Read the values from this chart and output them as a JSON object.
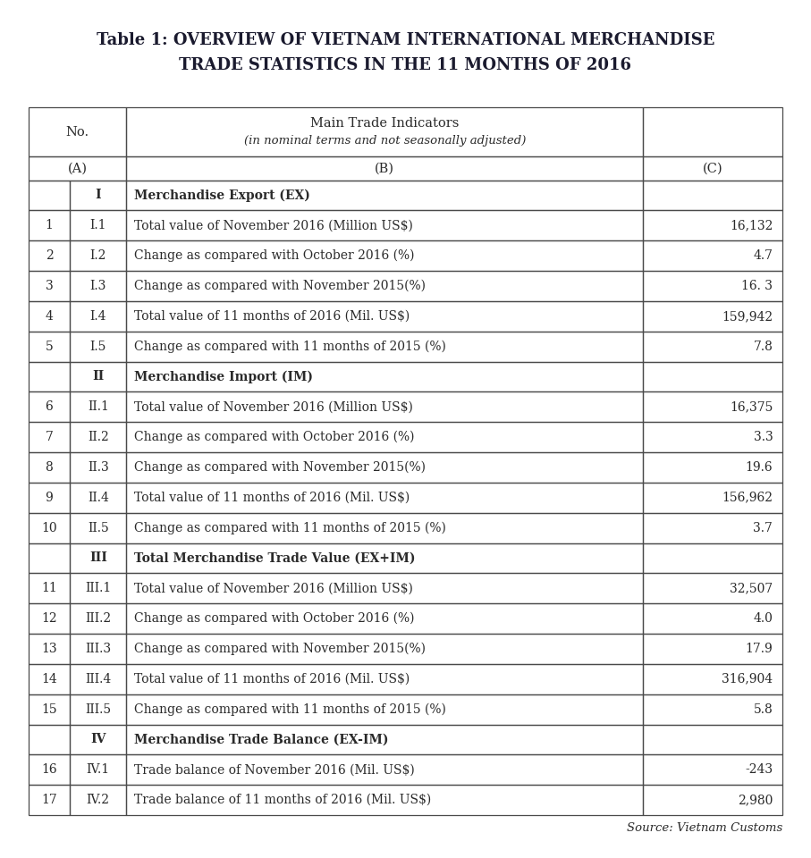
{
  "title_line1": "Table 1: OVERVIEW OF VIETNAM INTERNATIONAL MERCHANDISE",
  "title_line2": "TRADE STATISTICS IN THE 11 MONTHS OF 2016",
  "header_col1": "No.",
  "header_col2_line1": "Main Trade Indicators",
  "header_col2_line2": "(in nominal terms and not seasonally adjusted)",
  "header_col3": "(C)",
  "subheader_A": "(A)",
  "subheader_B": "(B)",
  "source": "Source: Vietnam Customs",
  "rows": [
    {
      "type": "section",
      "num": "",
      "sub": "I",
      "desc": "Merchandise Export (EX)",
      "val": ""
    },
    {
      "type": "data",
      "num": "1",
      "sub": "I.1",
      "desc": "Total value of November 2016 (Million US$)",
      "val": "16,132"
    },
    {
      "type": "data",
      "num": "2",
      "sub": "I.2",
      "desc": "Change as compared with October 2016 (%)",
      "val": "4.7"
    },
    {
      "type": "data",
      "num": "3",
      "sub": "I.3",
      "desc": "Change as compared with November 2015(%)",
      "val": "16. 3"
    },
    {
      "type": "data",
      "num": "4",
      "sub": "I.4",
      "desc": "Total value of 11 months of 2016 (Mil. US$)",
      "val": "159,942"
    },
    {
      "type": "data",
      "num": "5",
      "sub": "I.5",
      "desc": "Change as compared with 11 months of 2015 (%)",
      "val": "7.8"
    },
    {
      "type": "section",
      "num": "",
      "sub": "II",
      "desc": "Merchandise Import (IM)",
      "val": ""
    },
    {
      "type": "data",
      "num": "6",
      "sub": "II.1",
      "desc": "Total value of November 2016 (Million US$)",
      "val": "16,375"
    },
    {
      "type": "data",
      "num": "7",
      "sub": "II.2",
      "desc": "Change as compared with October 2016 (%)",
      "val": "3.3"
    },
    {
      "type": "data",
      "num": "8",
      "sub": "II.3",
      "desc": "Change as compared with November 2015(%)",
      "val": "19.6"
    },
    {
      "type": "data",
      "num": "9",
      "sub": "II.4",
      "desc": "Total value of 11 months of 2016 (Mil. US$)",
      "val": "156,962"
    },
    {
      "type": "data",
      "num": "10",
      "sub": "II.5",
      "desc": "Change as compared with 11 months of 2015 (%)",
      "val": "3.7"
    },
    {
      "type": "section",
      "num": "",
      "sub": "III",
      "desc": "Total Merchandise Trade Value (EX+IM)",
      "val": ""
    },
    {
      "type": "data",
      "num": "11",
      "sub": "III.1",
      "desc": "Total value of November 2016 (Million US$)",
      "val": "32,507"
    },
    {
      "type": "data",
      "num": "12",
      "sub": "III.2",
      "desc": "Change as compared with October 2016 (%)",
      "val": "4.0"
    },
    {
      "type": "data",
      "num": "13",
      "sub": "III.3",
      "desc": "Change as compared with November 2015(%)",
      "val": "17.9"
    },
    {
      "type": "data",
      "num": "14",
      "sub": "III.4",
      "desc": "Total value of 11 months of 2016 (Mil. US$)",
      "val": "316,904"
    },
    {
      "type": "data",
      "num": "15",
      "sub": "III.5",
      "desc": "Change as compared with 11 months of 2015 (%)",
      "val": "5.8"
    },
    {
      "type": "section",
      "num": "",
      "sub": "IV",
      "desc": "Merchandise Trade Balance (EX-IM)",
      "val": ""
    },
    {
      "type": "data",
      "num": "16",
      "sub": "IV.1",
      "desc": "Trade balance of November 2016 (Mil. US$)",
      "val": "-243"
    },
    {
      "type": "data",
      "num": "17",
      "sub": "IV.2",
      "desc": "Trade balance of 11 months of 2016 (Mil. US$)",
      "val": "2,980"
    }
  ],
  "bg_color": "#ffffff",
  "border_color": "#4a4a4a",
  "text_color": "#2a2a2a",
  "title_color": "#1a1a2e",
  "title_fontsize": 13,
  "header_fontsize": 10.5,
  "cell_fontsize": 10
}
